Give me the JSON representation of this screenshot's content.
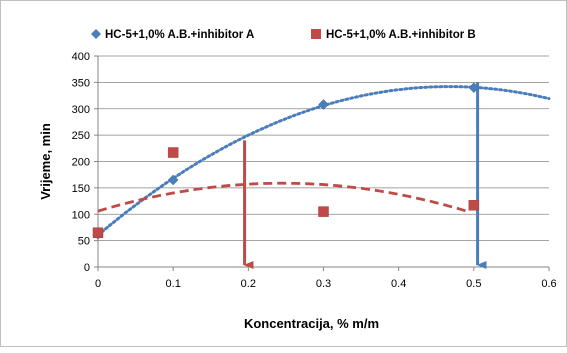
{
  "chart_data": {
    "type": "scatter",
    "xlabel": "Koncentracija, % m/m",
    "ylabel": "Vrijeme, min",
    "xlim": [
      0,
      0.6
    ],
    "ylim": [
      0,
      400
    ],
    "xticks": [
      "0",
      "0.1",
      "0.2",
      "0.3",
      "0.4",
      "0.5",
      "0.6"
    ],
    "yticks": [
      "0",
      "50",
      "100",
      "150",
      "200",
      "250",
      "300",
      "350",
      "400"
    ],
    "grid": "horizontal",
    "legend": "top",
    "series": [
      {
        "name": "HC-5+1,0% A.B.+inhibitor A",
        "color": "#4a7ebb",
        "marker": "diamond",
        "x": [
          0,
          0.1,
          0.3,
          0.5
        ],
        "y": [
          62,
          165,
          308,
          340
        ],
        "trendline": {
          "type": "polynomial",
          "style": "dotted",
          "x_range": [
            0,
            0.6
          ]
        }
      },
      {
        "name": "HC-5+1,0% A.B.+inhibitor B",
        "color": "#be4b48",
        "marker": "square",
        "x": [
          0,
          0.1,
          0.3,
          0.5
        ],
        "y": [
          65,
          217,
          105,
          117
        ],
        "trendline": {
          "type": "polynomial",
          "style": "dashed",
          "x_range": [
            0,
            0.49
          ]
        }
      }
    ],
    "annotations": [
      {
        "type": "arrow",
        "color": "#be4b48",
        "x": 0.195,
        "from_y": 240,
        "to_y": 0
      },
      {
        "type": "arrow",
        "color": "#4a7ebb",
        "x": 0.505,
        "from_y": 350,
        "to_y": 0
      }
    ]
  }
}
